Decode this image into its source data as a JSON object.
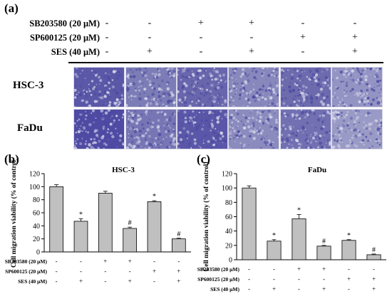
{
  "panel_a": {
    "label": "(a)",
    "treatments": [
      {
        "label": "SB203580 (20 μM)",
        "signs": [
          "-",
          "-",
          "+",
          "+",
          "-",
          "-"
        ]
      },
      {
        "label": "SP600125 (20 μM)",
        "signs": [
          "-",
          "-",
          "-",
          "-",
          "+",
          "+"
        ]
      },
      {
        "label": "SES (40 μM)",
        "signs": [
          "-",
          "+",
          "-",
          "+",
          "-",
          "+"
        ]
      }
    ],
    "rows": [
      {
        "label": "HSC-3",
        "tints": [
          "#5b58a8",
          "#7c7cb6",
          "#6a66ad",
          "#8888bd",
          "#6d6aae",
          "#9494c4"
        ]
      },
      {
        "label": "FaDu",
        "tints": [
          "#4f4aa3",
          "#7775b4",
          "#5b57a8",
          "#8c8bbe",
          "#7270b2",
          "#9a9ac6"
        ]
      }
    ],
    "stain_color": "#4a4aa0"
  },
  "chart_data": [
    {
      "panel": "(b)",
      "type": "bar",
      "title": "HSC-3",
      "ylabel": "Cell migration viability (% of control)",
      "ylim": [
        0,
        120
      ],
      "yticks": [
        "0",
        "20",
        "40",
        "60",
        "80",
        "100",
        "120"
      ],
      "values": [
        100,
        47,
        90,
        36,
        77,
        20
      ],
      "errors": [
        3,
        4,
        3,
        2,
        1.5,
        1
      ],
      "annotations": [
        "",
        "*",
        "",
        "#",
        "*",
        "#"
      ],
      "bar_color": "#c0c0c0",
      "rows": [
        {
          "label": "SB203580 (20 μM)",
          "signs": [
            "-",
            "-",
            "+",
            "+",
            "-",
            "-"
          ]
        },
        {
          "label": "SP600125 (20 μM)",
          "signs": [
            "-",
            "-",
            "-",
            "-",
            "+",
            "+"
          ]
        },
        {
          "label": "SES (40 μM)",
          "signs": [
            "-",
            "+",
            "-",
            "+",
            "-",
            "+"
          ]
        }
      ]
    },
    {
      "panel": "(c)",
      "type": "bar",
      "title": "FaDu",
      "ylabel": "Cell migration viability (% of control)",
      "ylim": [
        0,
        120
      ],
      "yticks": [
        "0",
        "20",
        "40",
        "60",
        "80",
        "100",
        "120"
      ],
      "values": [
        100,
        26,
        57,
        19,
        27,
        7
      ],
      "errors": [
        3,
        2,
        6,
        1,
        1,
        1
      ],
      "annotations": [
        "",
        "*",
        "*",
        "#",
        "*",
        "#"
      ],
      "bar_color": "#c0c0c0",
      "rows": [
        {
          "label": "SB203580 (20 μM)",
          "signs": [
            "-",
            "-",
            "+",
            "+",
            "-",
            "-"
          ]
        },
        {
          "label": "SP600125 (20 μM)",
          "signs": [
            "-",
            "-",
            "-",
            "-",
            "+",
            "+"
          ]
        },
        {
          "label": "SES (40 μM)",
          "signs": [
            "-",
            "+",
            "-",
            "+",
            "-",
            "+"
          ]
        }
      ]
    }
  ]
}
